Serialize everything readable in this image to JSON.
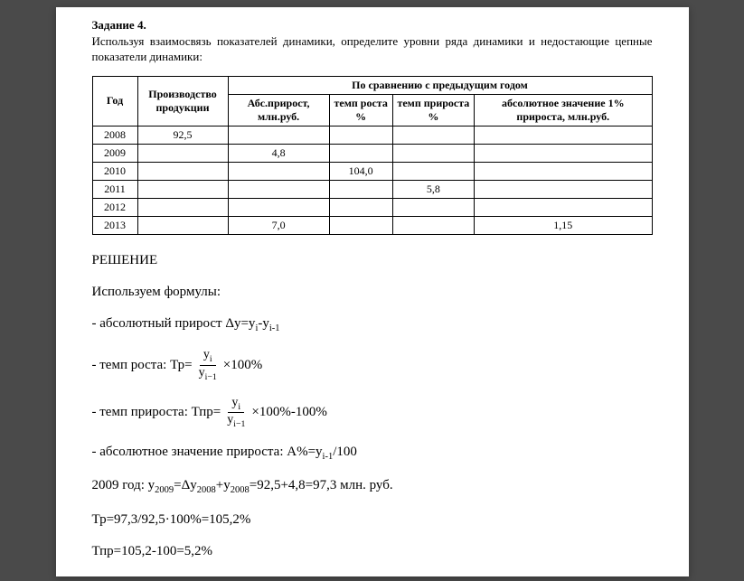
{
  "task": {
    "title": "Задание 4.",
    "description": "Используя взаимосвязь показателей динамики, определите уровни ряда динамики и недостающие цепные показатели динамики:"
  },
  "table": {
    "header": {
      "year": "Год",
      "production": "Производство продукции",
      "comparison_title": "По сравнению с предыдущим годом",
      "abs_growth": "Абс.прирост, млн.руб.",
      "growth_rate": "темп роста %",
      "increment_rate": "темп прироста %",
      "abs_value_1pct": "абсолютное значение 1% прироста, млн.руб."
    },
    "rows": [
      {
        "year": "2008",
        "prod": "92,5",
        "abs": "",
        "tr": "",
        "tpr": "",
        "a1": ""
      },
      {
        "year": "2009",
        "prod": "",
        "abs": "4,8",
        "tr": "",
        "tpr": "",
        "a1": ""
      },
      {
        "year": "2010",
        "prod": "",
        "abs": "",
        "tr": "104,0",
        "tpr": "",
        "a1": ""
      },
      {
        "year": "2011",
        "prod": "",
        "abs": "",
        "tr": "",
        "tpr": "5,8",
        "a1": ""
      },
      {
        "year": "2012",
        "prod": "",
        "abs": "",
        "tr": "",
        "tpr": "",
        "a1": ""
      },
      {
        "year": "2013",
        "prod": "",
        "abs": "7,0",
        "tr": "",
        "tpr": "",
        "a1": "1,15"
      }
    ]
  },
  "solution": {
    "title": "РЕШЕНИЕ",
    "formulas_intro": "Используем формулы:",
    "abs_growth_label": "- абсолютный прирост Δy=y",
    "growth_rate_label": "- темп роста:  Тр=",
    "increment_rate_label": "- темп прироста: Тпр=",
    "abs_value_label": "- абсолютное значение прироста:  А%=y",
    "times100": "×100%",
    "minus100": "-100%",
    "sub_i": "i",
    "sub_i1": "i-1",
    "divide100": "/100",
    "minus_y": "-y",
    "frac_num": "y",
    "frac_den": "y",
    "frac_num_sub": "i",
    "frac_den_sub": "i−1",
    "calc_2009": "2009 год:  y",
    "calc_2009_eq": "=Δy",
    "calc_2009_sub1": "2009",
    "calc_2009_sub2": "2008",
    "calc_2009_plus": "+y",
    "calc_2009_result": "=92,5+4,8=97,3  млн. руб.",
    "calc_tr": "Тр=97,3/92,5·100%=105,2%",
    "calc_tpr": "Тпр=105,2-100=5,2%"
  },
  "colors": {
    "page_bg": "#ffffff",
    "body_bg": "#4a4a4a",
    "border": "#000000",
    "text": "#000000"
  },
  "fonts": {
    "family": "Times New Roman",
    "body_size": 13,
    "solution_size": 15,
    "table_size": 12
  }
}
